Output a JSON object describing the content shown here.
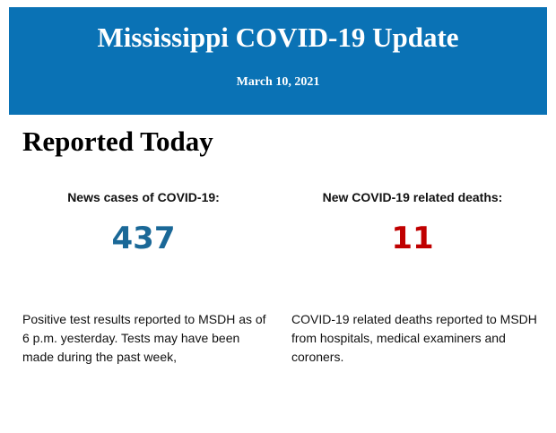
{
  "header": {
    "title": "Mississippi COVID-19 Update",
    "date": "March 10, 2021"
  },
  "section": {
    "heading": "Reported Today",
    "stats": [
      {
        "label": "News cases of COVID-19:",
        "value": "437",
        "note": "Positive test results reported to MSDH as of 6 p.m. yesterday. Tests may have been made during the past week,"
      },
      {
        "label": "New COVID-19 related deaths:",
        "value": "11",
        "note": "COVID-19 related deaths reported to MSDH from hospitals, medical examiners and coroners."
      }
    ]
  }
}
